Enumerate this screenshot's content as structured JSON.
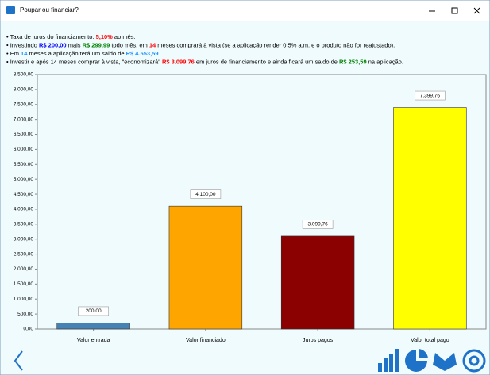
{
  "window": {
    "title": "Poupar ou financiar?"
  },
  "info": [
    [
      {
        "text": "• Taxa de juros do financiamento: "
      },
      {
        "text": "5,10%",
        "color": "#ff0000",
        "bold": true
      },
      {
        "text": " ao mês."
      }
    ],
    [
      {
        "text": "• Investindo "
      },
      {
        "text": "R$ 200,00",
        "color": "#0000ff",
        "bold": true
      },
      {
        "text": " mais "
      },
      {
        "text": "R$ 299,99",
        "color": "#008000",
        "bold": true
      },
      {
        "text": " todo mês, em "
      },
      {
        "text": "14",
        "color": "#ff0000",
        "bold": true
      },
      {
        "text": " meses comprará à vista (se a aplicação render 0,5% a.m. e o produto não for reajustado)."
      }
    ],
    [
      {
        "text": "• Em "
      },
      {
        "text": "14",
        "color": "#1e90ff",
        "bold": true
      },
      {
        "text": " meses a aplicação terá um saldo de "
      },
      {
        "text": "R$ 4.553,59",
        "color": "#1e90ff",
        "bold": true
      },
      {
        "text": "."
      }
    ],
    [
      {
        "text": "• Investir e após 14 meses comprar à vista, \"economizará\" "
      },
      {
        "text": "R$ 3.099,76",
        "color": "#ff0000",
        "bold": true
      },
      {
        "text": " em juros de financiamento e ainda ficará um saldo de "
      },
      {
        "text": "R$ 253,59",
        "color": "#008000",
        "bold": true
      },
      {
        "text": " na aplicação."
      }
    ]
  ],
  "chart_data": {
    "type": "bar",
    "categories": [
      "Valor entrada",
      "Valor financiado",
      "Juros pagos",
      "Valor total pago"
    ],
    "values": [
      200,
      4100,
      3099.76,
      7399.76
    ],
    "value_labels": [
      "200,00",
      "4.100,00",
      "3.099,76",
      "7.399,76"
    ],
    "colors": [
      "#4682b4",
      "#ffa500",
      "#8b0000",
      "#ffff00"
    ],
    "ylim": [
      0,
      8500
    ],
    "yticks": [
      {
        "value": 0,
        "label": "0,00"
      },
      {
        "value": 500,
        "label": "500,00"
      },
      {
        "value": 1000,
        "label": "1.000,00"
      },
      {
        "value": 1500,
        "label": "1.500,00"
      },
      {
        "value": 2000,
        "label": "2.000,00"
      },
      {
        "value": 2500,
        "label": "2.500,00"
      },
      {
        "value": 3000,
        "label": "3.000,00"
      },
      {
        "value": 3500,
        "label": "3.500,00"
      },
      {
        "value": 4000,
        "label": "4.000,00"
      },
      {
        "value": 4500,
        "label": "4.500,00"
      },
      {
        "value": 5000,
        "label": "5.000,00"
      },
      {
        "value": 5500,
        "label": "5.500,00"
      },
      {
        "value": 6000,
        "label": "6.000,00"
      },
      {
        "value": 6500,
        "label": "6.500,00"
      },
      {
        "value": 7000,
        "label": "7.000,00"
      },
      {
        "value": 7500,
        "label": "7.500,00"
      },
      {
        "value": 8000,
        "label": "8.000,00"
      },
      {
        "value": 8500,
        "label": "8.500,00"
      }
    ]
  }
}
